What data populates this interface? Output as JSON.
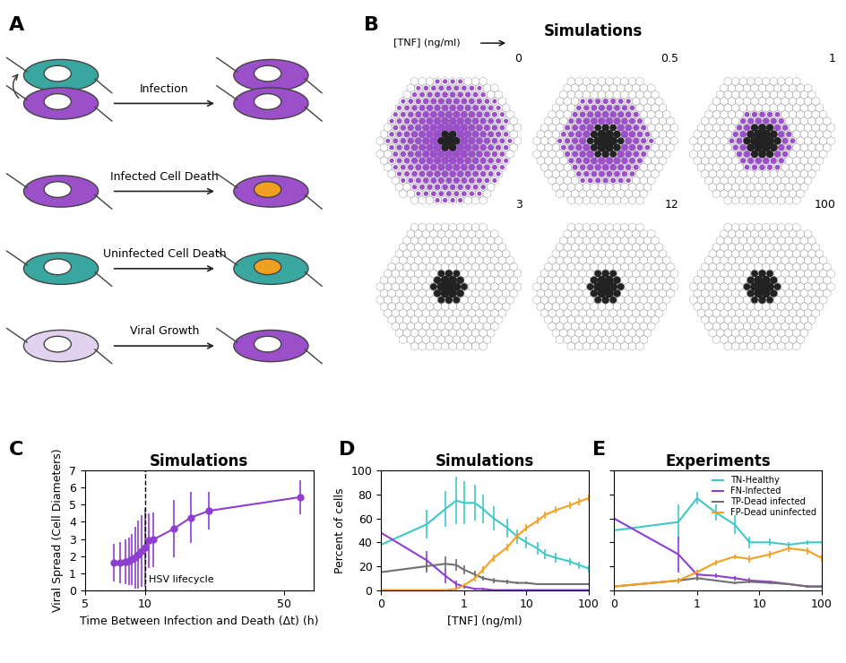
{
  "panel_labels": [
    "A",
    "B",
    "C",
    "D",
    "E"
  ],
  "diagram": {
    "labels": [
      "Infection",
      "Infected Cell Death",
      "Uninfected Cell Death",
      "Viral Growth"
    ]
  },
  "hex_simulations": {
    "title": "Simulations",
    "axis_label": "[TNF] (ng/ml)",
    "tnf": [
      0,
      0.5,
      1,
      3,
      12,
      100
    ],
    "infected_radius": [
      8,
      6,
      4,
      0,
      0,
      0
    ],
    "dead_radius": [
      1,
      2,
      2.5,
      2,
      2,
      2
    ]
  },
  "chart_data": [
    {
      "type": "line",
      "title": "Simulations",
      "x_label": "Time Between Infection and Death (Δt) (h)",
      "y_label": "Viral Spread (Cell Diameters)",
      "log": "x",
      "xlim": [
        5,
        70
      ],
      "xticks": [
        5,
        10,
        50
      ],
      "ylim": [
        0,
        7
      ],
      "yticks": [
        0,
        1,
        2,
        3,
        4,
        5,
        6,
        7
      ],
      "x": [
        7,
        7.5,
        8,
        8.3,
        8.6,
        9,
        9.3,
        9.6,
        10,
        10.5,
        11,
        14,
        17,
        21,
        60
      ],
      "series": [
        {
          "color": "#8e3fd0",
          "marker": "o",
          "values": [
            1.6,
            1.6,
            1.65,
            1.7,
            1.8,
            1.9,
            2.1,
            2.3,
            2.5,
            2.9,
            2.95,
            3.6,
            4.25,
            4.65,
            5.45
          ],
          "errors": [
            1.1,
            1.2,
            1.3,
            1.4,
            1.5,
            1.8,
            2.0,
            2.1,
            2.3,
            1.6,
            1.6,
            1.7,
            1.5,
            1.1,
            1.0
          ]
        }
      ],
      "annotations": [
        {
          "x": 10,
          "text": "HSV lifecycle"
        }
      ]
    },
    {
      "type": "line",
      "title": "Simulations",
      "x_label": "[TNF] (ng/ml)",
      "y_label": "Percent of cells",
      "log": "x",
      "xlim": [
        0,
        100
      ],
      "xticks": [
        0,
        1,
        10,
        100
      ],
      "ylim": [
        0,
        100
      ],
      "yticks": [
        0,
        20,
        40,
        60,
        80,
        100
      ],
      "x": [
        0,
        0.25,
        0.5,
        0.75,
        1,
        1.5,
        2,
        3,
        5,
        7,
        10,
        15,
        20,
        30,
        50,
        70,
        100
      ],
      "series": [
        {
          "color": "#40c8c8",
          "values": [
            38,
            55,
            68,
            75,
            73,
            73,
            68,
            60,
            52,
            45,
            40,
            35,
            30,
            27,
            24,
            21,
            18
          ],
          "errors": [
            10,
            12,
            15,
            20,
            18,
            15,
            12,
            10,
            8,
            6,
            5,
            5,
            4,
            4,
            3,
            3,
            3
          ]
        },
        {
          "color": "#8e3fd0",
          "values": [
            48,
            25,
            12,
            5,
            3,
            1,
            1,
            0,
            0,
            0,
            0,
            0,
            0,
            0,
            0,
            0,
            0
          ],
          "errors": [
            8,
            8,
            6,
            3,
            2,
            1,
            1,
            0,
            0,
            0,
            0,
            0,
            0,
            0,
            0,
            0,
            0
          ]
        },
        {
          "color": "#707070",
          "values": [
            15,
            20,
            22,
            21,
            17,
            13,
            10,
            8,
            7,
            6,
            6,
            5,
            5,
            5,
            5,
            5,
            5
          ],
          "errors": [
            4,
            5,
            6,
            5,
            4,
            3,
            2,
            2,
            2,
            1,
            1,
            1,
            1,
            1,
            1,
            1,
            1
          ]
        },
        {
          "color": "#f5a020",
          "values": [
            0,
            0,
            0,
            1,
            4,
            10,
            17,
            27,
            36,
            45,
            52,
            58,
            63,
            67,
            71,
            74,
            77
          ],
          "errors": [
            0,
            0,
            0,
            1,
            2,
            3,
            3,
            3,
            3,
            3,
            3,
            3,
            3,
            3,
            3,
            3,
            3
          ]
        }
      ]
    },
    {
      "type": "line",
      "title": "Experiments",
      "log": "x",
      "xlim": [
        0,
        100
      ],
      "xticks": [
        0,
        1,
        10,
        100
      ],
      "ylim": [
        0,
        100
      ],
      "yticks": [
        0,
        20,
        40,
        60,
        80,
        100
      ],
      "tick_labels": "x",
      "legend": "upper right",
      "x": [
        0,
        0.5,
        1,
        2,
        4,
        7,
        15,
        30,
        60,
        100
      ],
      "series": [
        {
          "name": "TN-Healthy",
          "color": "#40c8c8",
          "values": [
            50,
            57,
            77,
            65,
            55,
            40,
            40,
            38,
            40,
            40
          ],
          "errors": [
            10,
            15,
            5,
            7,
            8,
            5,
            3,
            2,
            2,
            1
          ]
        },
        {
          "name": "FN-Infected",
          "color": "#8e3fd0",
          "values": [
            60,
            30,
            13,
            12,
            10,
            8,
            7,
            5,
            3,
            3
          ],
          "errors": [
            10,
            15,
            4,
            2,
            2,
            2,
            1,
            1,
            1,
            1
          ]
        },
        {
          "name": "TP-Dead infected",
          "color": "#707070",
          "values": [
            3,
            8,
            10,
            8,
            6,
            7,
            6,
            5,
            3,
            3
          ],
          "errors": [
            1,
            2,
            2,
            1,
            1,
            1,
            1,
            1,
            1,
            1
          ]
        },
        {
          "name": "FP-Dead uninfected",
          "color": "#f5a020",
          "values": [
            3,
            8,
            15,
            23,
            28,
            26,
            30,
            35,
            33,
            27
          ],
          "errors": [
            1,
            2,
            2,
            2,
            2,
            3,
            3,
            3,
            3,
            3
          ]
        }
      ]
    }
  ]
}
